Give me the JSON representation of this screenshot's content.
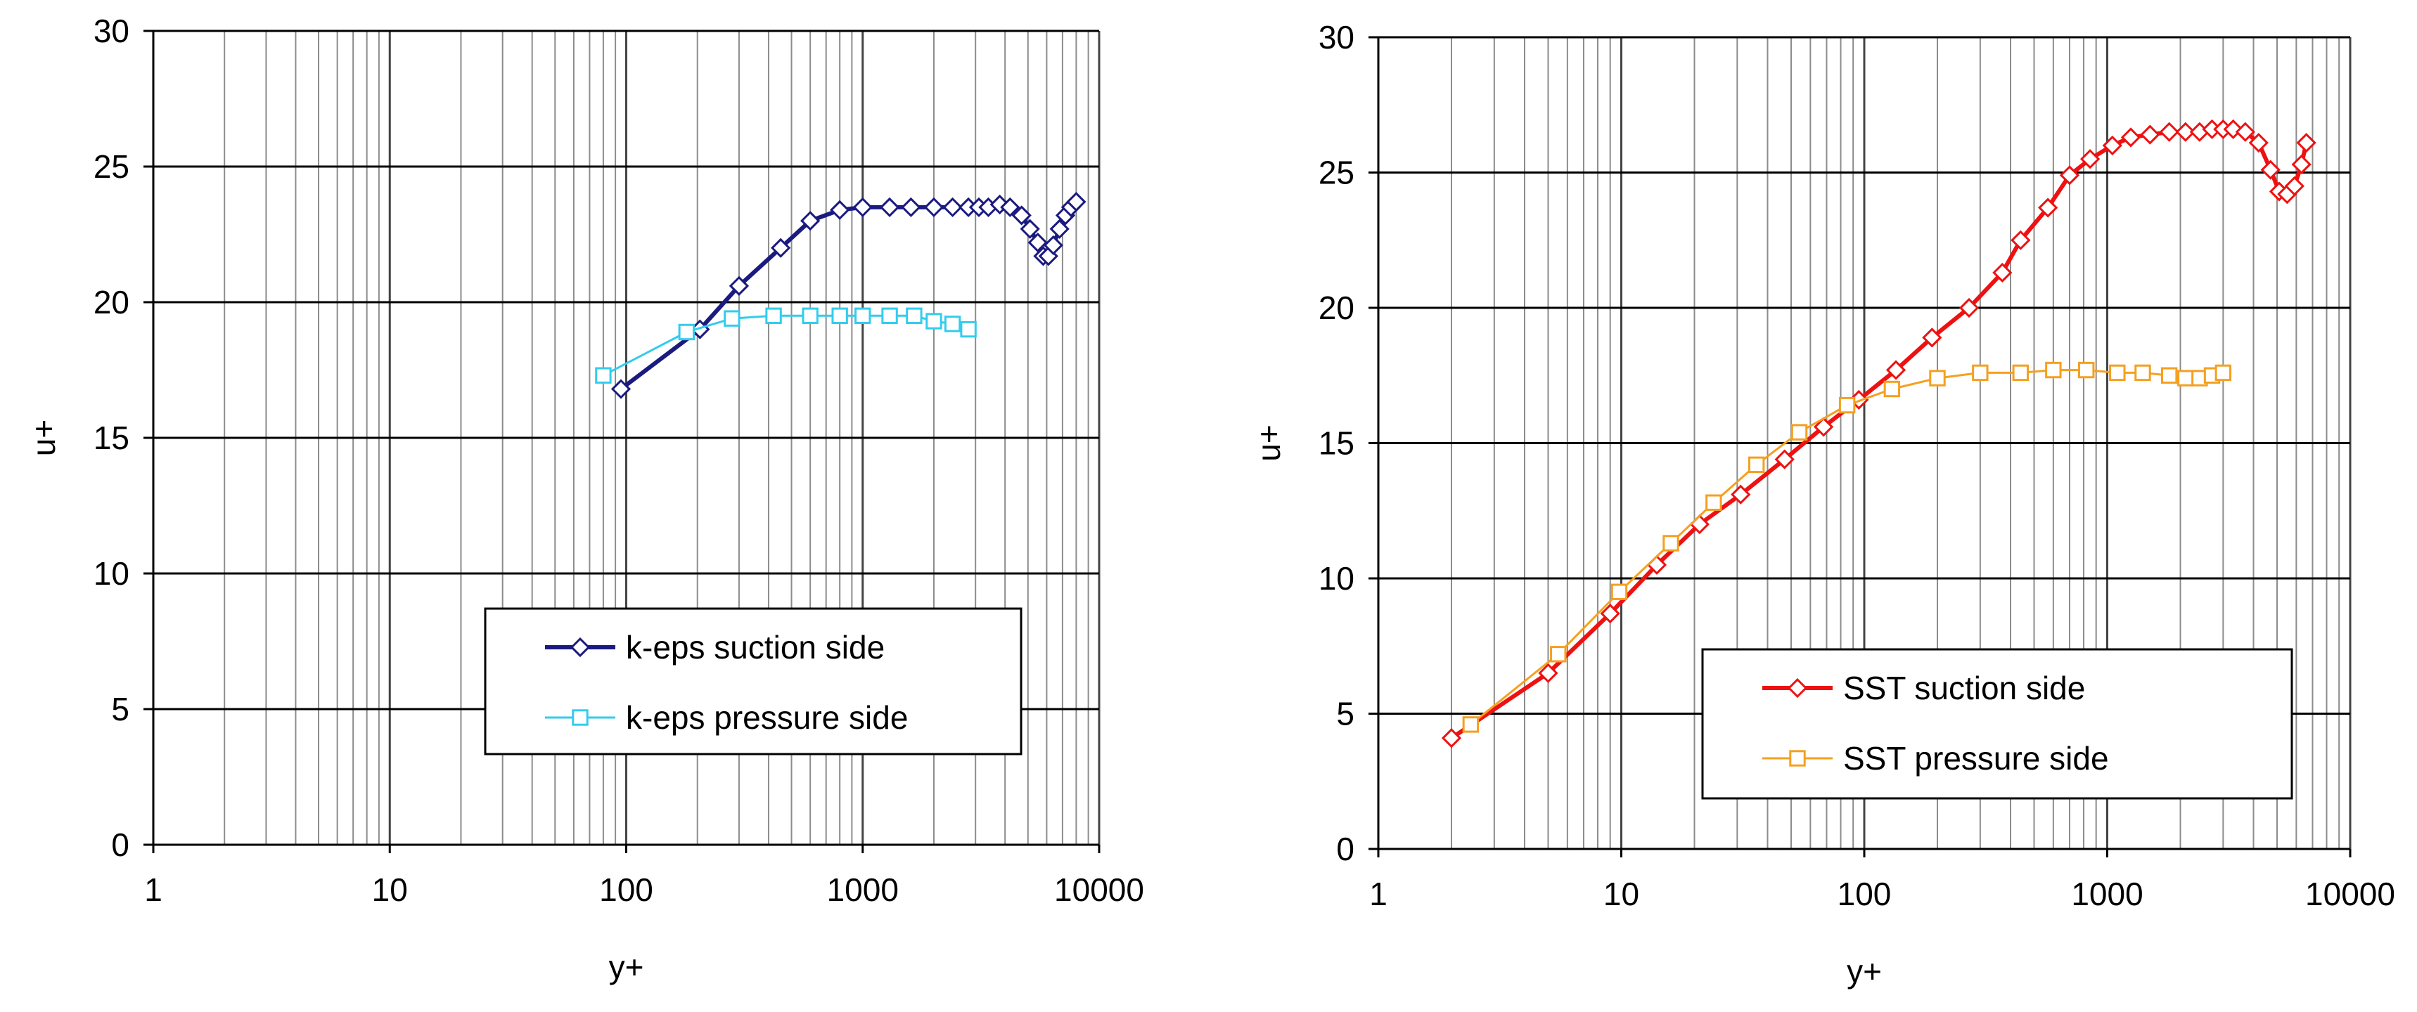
{
  "chart_data": [
    {
      "type": "line",
      "x_scale": "log",
      "xlabel": "y+",
      "ylabel": "u+",
      "xlim": [
        1,
        10000
      ],
      "ylim": [
        0,
        30
      ],
      "x_tick_labels": [
        "1",
        "10",
        "100",
        "1000",
        "10000"
      ],
      "y_tick_labels": [
        "0",
        "5",
        "10",
        "15",
        "20",
        "25",
        "30"
      ],
      "grid": true,
      "legend": "lower-right",
      "series": [
        {
          "name": "k-eps suction side",
          "color": "#1a1a80",
          "marker": "diamond",
          "x": [
            95,
            205,
            300,
            450,
            600,
            800,
            1000,
            1300,
            1600,
            2000,
            2400,
            2800,
            3100,
            3400,
            3800,
            4200,
            4700,
            5100,
            5500,
            5800,
            6100,
            6400,
            6800,
            7200,
            7600,
            8000
          ],
          "y": [
            16.8,
            19.0,
            20.6,
            22.0,
            23.0,
            23.4,
            23.5,
            23.5,
            23.5,
            23.5,
            23.5,
            23.5,
            23.5,
            23.5,
            23.6,
            23.5,
            23.2,
            22.7,
            22.2,
            21.7,
            21.7,
            22.1,
            22.7,
            23.2,
            23.5,
            23.7
          ]
        },
        {
          "name": "k-eps pressure side",
          "color": "#33ccee",
          "marker": "square",
          "x": [
            80,
            180,
            280,
            420,
            600,
            800,
            1000,
            1300,
            1650,
            2000,
            2400,
            2800
          ],
          "y": [
            17.3,
            18.9,
            19.4,
            19.5,
            19.5,
            19.5,
            19.5,
            19.5,
            19.5,
            19.3,
            19.2,
            19.0
          ]
        }
      ]
    },
    {
      "type": "line",
      "x_scale": "log",
      "xlabel": "y+",
      "ylabel": "u+",
      "xlim": [
        1,
        10000
      ],
      "ylim": [
        0,
        30
      ],
      "x_tick_labels": [
        "1",
        "10",
        "100",
        "1000",
        "10000"
      ],
      "y_tick_labels": [
        "0",
        "5",
        "10",
        "15",
        "20",
        "25",
        "30"
      ],
      "grid": true,
      "legend": "lower-right",
      "series": [
        {
          "name": "SST suction side",
          "color": "#ee1111",
          "marker": "diamond",
          "x": [
            2.0,
            5.0,
            9.0,
            14,
            21,
            31,
            47,
            68,
            95,
            135,
            190,
            270,
            370,
            440,
            570,
            700,
            850,
            1050,
            1250,
            1500,
            1800,
            2100,
            2400,
            2700,
            3000,
            3300,
            3700,
            4200,
            4700,
            5100,
            5500,
            5900,
            6300,
            6600
          ],
          "y": [
            4.1,
            6.5,
            8.7,
            10.5,
            12.0,
            13.1,
            14.4,
            15.6,
            16.6,
            17.7,
            18.9,
            20.0,
            21.3,
            22.5,
            23.7,
            24.9,
            25.5,
            26.0,
            26.3,
            26.4,
            26.5,
            26.5,
            26.5,
            26.6,
            26.6,
            26.6,
            26.5,
            26.1,
            25.1,
            24.3,
            24.2,
            24.5,
            25.3,
            26.1
          ]
        },
        {
          "name": "SST pressure side",
          "color": "#f5a020",
          "marker": "square",
          "x": [
            2.4,
            5.5,
            9.8,
            16,
            24,
            36,
            54,
            85,
            130,
            200,
            300,
            440,
            600,
            820,
            1100,
            1400,
            1800,
            2100,
            2400,
            2700,
            3000
          ],
          "y": [
            4.6,
            7.2,
            9.5,
            11.3,
            12.8,
            14.2,
            15.4,
            16.4,
            17.0,
            17.4,
            17.6,
            17.6,
            17.7,
            17.7,
            17.6,
            17.6,
            17.5,
            17.4,
            17.4,
            17.5,
            17.6
          ]
        }
      ]
    }
  ]
}
